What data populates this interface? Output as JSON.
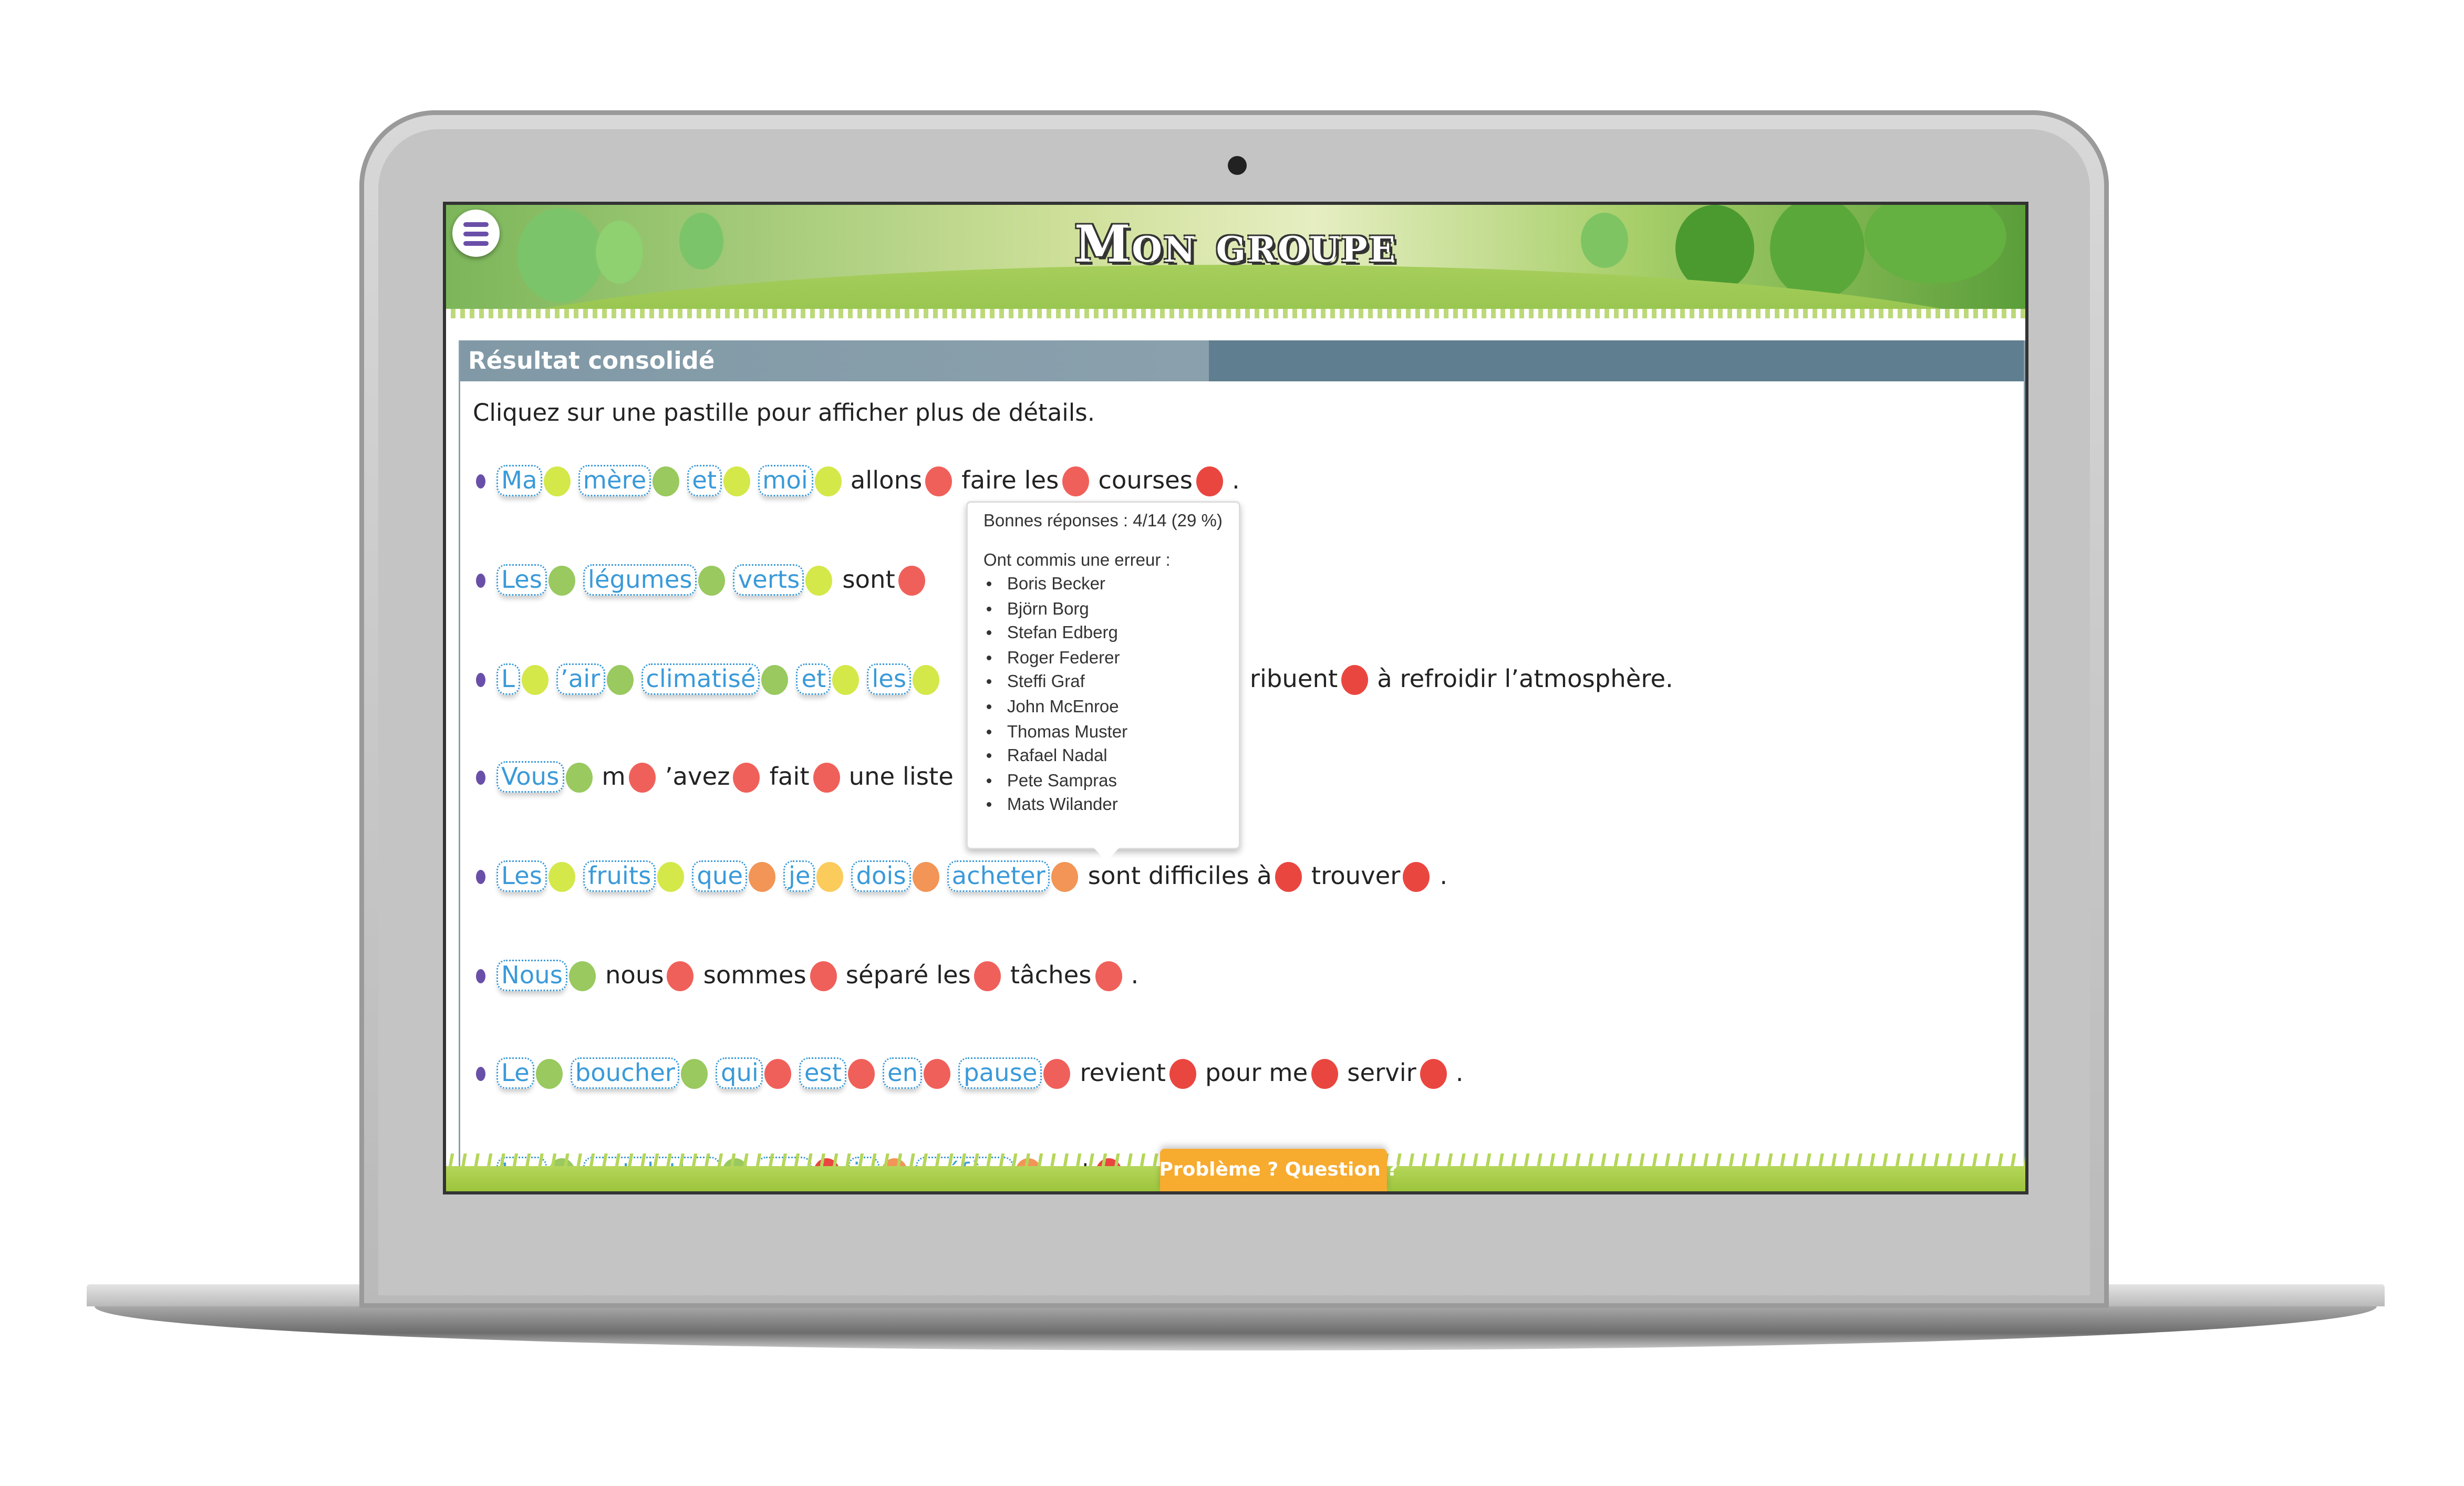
{
  "header": {
    "title": "Mon groupe",
    "menu_icon": "hamburger-icon"
  },
  "panel": {
    "title": "Résultat consolidé",
    "instruction": "Cliquez sur une pastille pour afficher plus de détails."
  },
  "colors": {
    "yg": "#d4e84a",
    "g": "#99c95f",
    "r": "#f0605a",
    "R": "#ea4640",
    "o": "#f29556",
    "y": "#fbcb5b",
    "boxed_text": "#3a9ad9",
    "header_bar": "#5f7e8f",
    "help_button": "#f7ab2f"
  },
  "sentences": [
    [
      {
        "t": "Ma",
        "b": true,
        "c": "yg"
      },
      {
        "t": "mère",
        "b": true,
        "c": "g"
      },
      {
        "t": "et",
        "b": true,
        "c": "yg"
      },
      {
        "t": "moi",
        "b": true,
        "c": "yg"
      },
      {
        "t": "allons",
        "c": "r"
      },
      {
        "t": "faire les",
        "c": "r"
      },
      {
        "t": "courses",
        "c": "R"
      },
      {
        "t": "."
      }
    ],
    [
      {
        "t": "Les",
        "b": true,
        "c": "g"
      },
      {
        "t": "légumes",
        "b": true,
        "c": "g"
      },
      {
        "t": "verts",
        "b": true,
        "c": "yg"
      },
      {
        "t": "sont",
        "c": "r"
      }
    ],
    [
      {
        "t": "L",
        "b": true,
        "c": "yg"
      },
      {
        "t": "’air",
        "b": true,
        "c": "g"
      },
      {
        "t": "climatisé",
        "b": true,
        "c": "g"
      },
      {
        "t": "et",
        "b": true,
        "c": "yg"
      },
      {
        "t": "les",
        "b": true,
        "c": "yg"
      },
      {
        "gap": true
      },
      {
        "t": "ribuent",
        "c": "R"
      },
      {
        "t": "à refroidir l’atmosphère."
      }
    ],
    [
      {
        "t": "Vous",
        "b": true,
        "c": "g"
      },
      {
        "t": "m",
        "c": "r"
      },
      {
        "t": "’avez",
        "c": "r"
      },
      {
        "t": "fait",
        "c": "r"
      },
      {
        "t": "une liste"
      }
    ],
    [
      {
        "t": "Les",
        "b": true,
        "c": "yg"
      },
      {
        "t": "fruits",
        "b": true,
        "c": "yg"
      },
      {
        "t": "que",
        "b": true,
        "c": "o"
      },
      {
        "t": "je",
        "b": true,
        "c": "y"
      },
      {
        "t": "dois",
        "b": true,
        "c": "o"
      },
      {
        "t": "acheter",
        "b": true,
        "c": "o"
      },
      {
        "t": "sont difficiles à",
        "c": "R"
      },
      {
        "t": "trouver",
        "c": "R"
      },
      {
        "t": "."
      }
    ],
    [
      {
        "t": "Nous",
        "b": true,
        "c": "g"
      },
      {
        "t": "nous",
        "c": "r"
      },
      {
        "t": "sommes",
        "c": "r"
      },
      {
        "t": "séparé les",
        "c": "r"
      },
      {
        "t": "tâches",
        "c": "r"
      },
      {
        "t": "."
      }
    ],
    [
      {
        "t": "Le",
        "b": true,
        "c": "g"
      },
      {
        "t": "boucher",
        "b": true,
        "c": "g"
      },
      {
        "t": "qui",
        "b": true,
        "c": "r"
      },
      {
        "t": "est",
        "b": true,
        "c": "r"
      },
      {
        "t": "en",
        "b": true,
        "c": "r"
      },
      {
        "t": "pause",
        "b": true,
        "c": "r"
      },
      {
        "t": "revient",
        "c": "R"
      },
      {
        "t": "pour me",
        "c": "R"
      },
      {
        "t": "servir",
        "c": "R"
      },
      {
        "t": "."
      }
    ],
    [
      {
        "t": "Les",
        "b": true,
        "c": "g"
      },
      {
        "t": "tartelettes",
        "b": true,
        "c": "g"
      },
      {
        "t": "que",
        "b": true,
        "c": "R"
      },
      {
        "t": "je",
        "b": true,
        "c": "o"
      },
      {
        "t": "préfère",
        "b": true,
        "c": "o"
      },
      {
        "t": "ont",
        "c": "R"
      },
      {
        "t": "."
      }
    ]
  ],
  "tooltip": {
    "score": "Bonnes réponses : 4/14 (29 %)",
    "errors_label": "Ont commis une erreur :",
    "names": [
      "Boris Becker",
      "Björn Borg",
      "Stefan Edberg",
      "Roger Federer",
      "Steffi Graf",
      "John McEnroe",
      "Thomas Muster",
      "Rafael Nadal",
      "Pete Sampras",
      "Mats Wilander"
    ]
  },
  "help_button": "Problème ? Question ?"
}
